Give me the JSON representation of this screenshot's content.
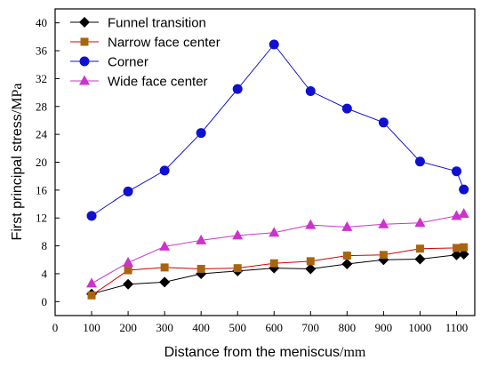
{
  "chart_data": {
    "type": "line",
    "xlabel": "Distance from the meniscus",
    "xunit": "/mm",
    "ylabel": "First principal stress",
    "yunit": "/MPa",
    "xlim": [
      0,
      1150
    ],
    "ylim": [
      -2,
      42
    ],
    "xticks": [
      0,
      100,
      200,
      300,
      400,
      500,
      600,
      700,
      800,
      900,
      1000,
      1100
    ],
    "yticks": [
      0,
      4,
      8,
      12,
      16,
      20,
      24,
      28,
      32,
      36,
      40
    ],
    "legend_position": "top-left",
    "grid": false,
    "series": [
      {
        "name": "Funnel transition",
        "marker": "diamond",
        "color": "#000000",
        "x": [
          100,
          200,
          300,
          400,
          500,
          600,
          700,
          800,
          900,
          1000,
          1100,
          1120
        ],
        "y": [
          1.1,
          2.5,
          2.8,
          4.0,
          4.4,
          4.8,
          4.7,
          5.4,
          6.0,
          6.1,
          6.7,
          6.8
        ]
      },
      {
        "name": "Narrow face center",
        "marker": "square",
        "color": "#d40000",
        "marker_color": "#a8650f",
        "x": [
          100,
          200,
          300,
          400,
          500,
          600,
          700,
          800,
          900,
          1000,
          1100,
          1120
        ],
        "y": [
          0.9,
          4.5,
          4.9,
          4.7,
          4.8,
          5.5,
          5.8,
          6.6,
          6.7,
          7.6,
          7.7,
          7.8
        ]
      },
      {
        "name": "Corner",
        "marker": "circle",
        "color": "#1010d0",
        "x": [
          100,
          200,
          300,
          400,
          500,
          600,
          700,
          800,
          900,
          1000,
          1100,
          1120
        ],
        "y": [
          12.3,
          15.8,
          18.8,
          24.2,
          30.5,
          36.9,
          30.2,
          27.7,
          25.7,
          20.1,
          18.7,
          16.1
        ]
      },
      {
        "name": "Wide face center",
        "marker": "triangle",
        "color": "#cc33cc",
        "x": [
          100,
          200,
          300,
          400,
          500,
          600,
          700,
          800,
          900,
          1000,
          1100,
          1120
        ],
        "y": [
          2.6,
          5.6,
          7.9,
          8.8,
          9.5,
          9.9,
          11.0,
          10.7,
          11.1,
          11.3,
          12.3,
          12.6
        ]
      }
    ]
  }
}
